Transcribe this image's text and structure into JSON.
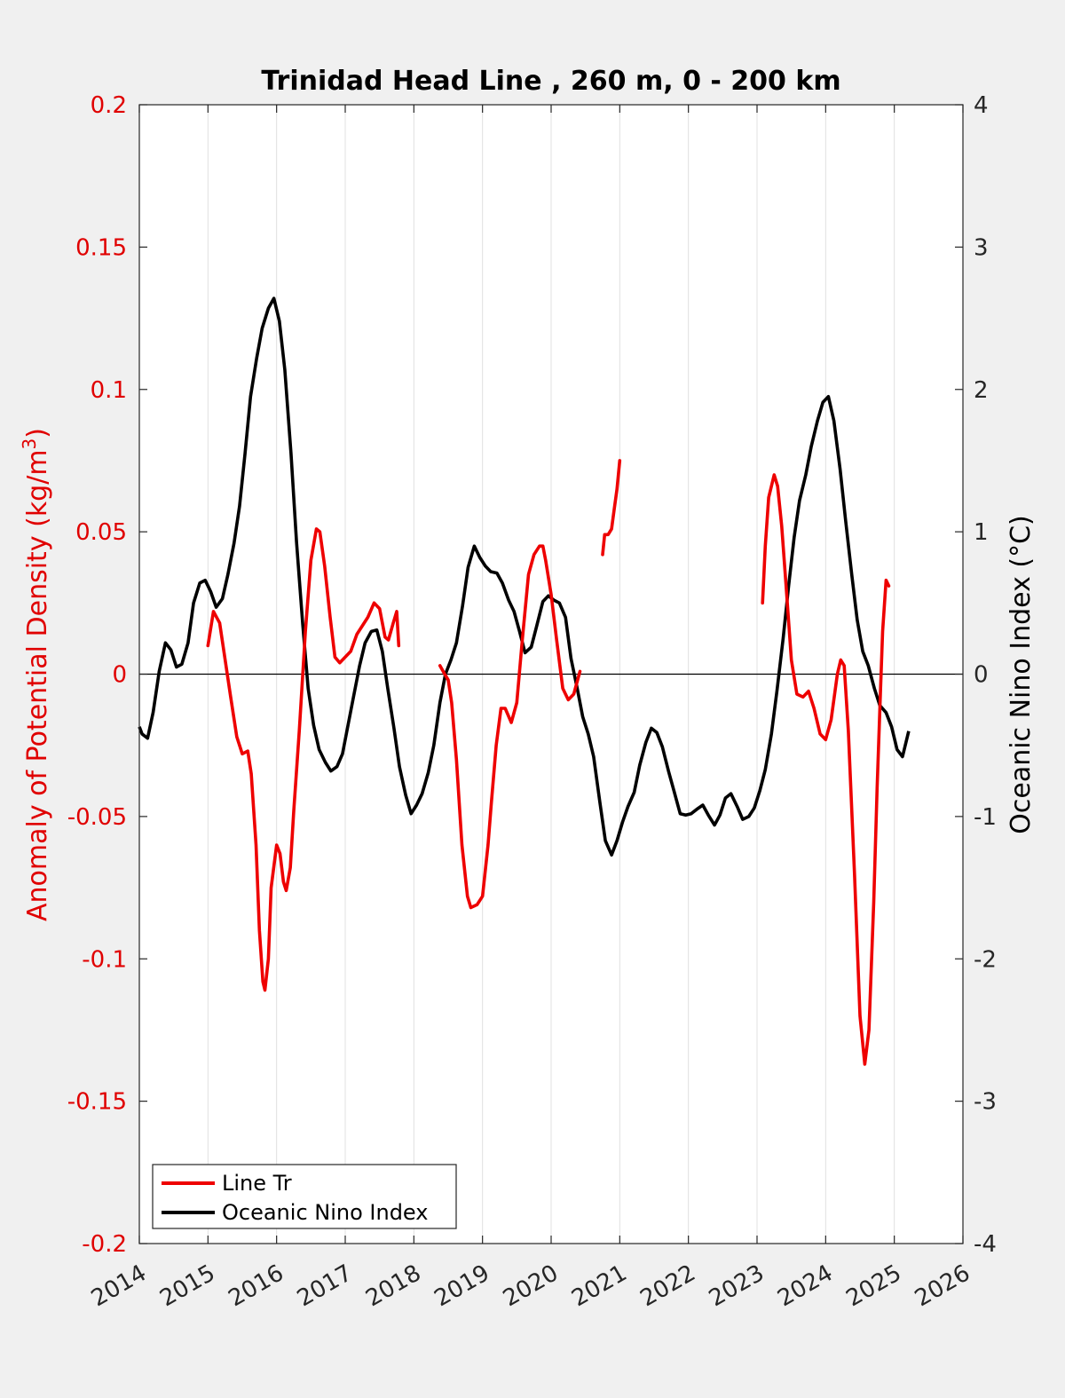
{
  "chart_data": {
    "type": "line",
    "title": "Trinidad Head Line , 260 m, 0 - 200 km",
    "ylabel_left": "Anomaly of Potential Density (kg/m",
    "ylabel_left_sup": "3",
    "ylabel_left_close": ")",
    "ylabel_right": "Oceanic Nino Index (°C)",
    "xlim": [
      2014,
      2026
    ],
    "ylim_left": [
      -0.2,
      0.2
    ],
    "ylim_right": [
      -4,
      4
    ],
    "grid": "vertical",
    "legend_position": "bottom-left",
    "colors": {
      "left_axis": "#e00000",
      "line_tr": "#ee0000",
      "oni": "#000000",
      "background": "#f0f0f0",
      "plot_bg": "#ffffff",
      "grid": "#e0e0e0"
    },
    "x_ticks": [
      "2014",
      "2015",
      "2016",
      "2017",
      "2018",
      "2019",
      "2020",
      "2021",
      "2022",
      "2023",
      "2024",
      "2025",
      "2026"
    ],
    "y_ticks_left": [
      "0.2",
      "0.15",
      "0.1",
      "0.05",
      "0",
      "-0.05",
      "-0.1",
      "-0.15",
      "-0.2"
    ],
    "y_ticks_right": [
      "4",
      "3",
      "2",
      "1",
      "0",
      "-1",
      "-2",
      "-3",
      "-4"
    ],
    "series": [
      {
        "name": "Line Tr",
        "axis": "left",
        "segments": [
          [
            [
              2015.0,
              0.01
            ],
            [
              2015.08,
              0.022
            ],
            [
              2015.17,
              0.018
            ],
            [
              2015.25,
              0.005
            ],
            [
              2015.33,
              -0.008
            ],
            [
              2015.42,
              -0.022
            ],
            [
              2015.5,
              -0.028
            ],
            [
              2015.58,
              -0.027
            ],
            [
              2015.63,
              -0.035
            ],
            [
              2015.7,
              -0.06
            ],
            [
              2015.75,
              -0.09
            ],
            [
              2015.8,
              -0.108
            ],
            [
              2015.83,
              -0.111
            ],
            [
              2015.88,
              -0.1
            ],
            [
              2015.92,
              -0.075
            ],
            [
              2016.0,
              -0.06
            ],
            [
              2016.05,
              -0.063
            ],
            [
              2016.1,
              -0.073
            ],
            [
              2016.14,
              -0.076
            ],
            [
              2016.2,
              -0.068
            ],
            [
              2016.25,
              -0.048
            ],
            [
              2016.33,
              -0.02
            ],
            [
              2016.42,
              0.015
            ],
            [
              2016.5,
              0.04
            ],
            [
              2016.58,
              0.051
            ],
            [
              2016.63,
              0.05
            ],
            [
              2016.7,
              0.038
            ],
            [
              2016.78,
              0.02
            ],
            [
              2016.85,
              0.006
            ],
            [
              2016.92,
              0.004
            ],
            [
              2017.0,
              0.006
            ],
            [
              2017.08,
              0.008
            ],
            [
              2017.17,
              0.014
            ],
            [
              2017.25,
              0.017
            ],
            [
              2017.33,
              0.02
            ],
            [
              2017.42,
              0.025
            ],
            [
              2017.5,
              0.023
            ],
            [
              2017.58,
              0.013
            ],
            [
              2017.63,
              0.012
            ],
            [
              2017.7,
              0.018
            ],
            [
              2017.75,
              0.022
            ],
            [
              2017.78,
              0.01
            ]
          ],
          [
            [
              2018.38,
              0.003
            ],
            [
              2018.45,
              0.0
            ],
            [
              2018.5,
              -0.002
            ],
            [
              2018.55,
              -0.01
            ],
            [
              2018.62,
              -0.03
            ],
            [
              2018.7,
              -0.06
            ],
            [
              2018.78,
              -0.078
            ],
            [
              2018.83,
              -0.082
            ],
            [
              2018.92,
              -0.081
            ],
            [
              2019.0,
              -0.078
            ],
            [
              2019.08,
              -0.06
            ],
            [
              2019.13,
              -0.045
            ],
            [
              2019.2,
              -0.025
            ],
            [
              2019.27,
              -0.012
            ],
            [
              2019.33,
              -0.012
            ],
            [
              2019.42,
              -0.017
            ],
            [
              2019.5,
              -0.01
            ],
            [
              2019.58,
              0.012
            ],
            [
              2019.67,
              0.035
            ],
            [
              2019.75,
              0.042
            ],
            [
              2019.83,
              0.045
            ],
            [
              2019.88,
              0.045
            ],
            [
              2019.92,
              0.04
            ],
            [
              2020.0,
              0.028
            ],
            [
              2020.08,
              0.012
            ],
            [
              2020.17,
              -0.005
            ],
            [
              2020.25,
              -0.009
            ],
            [
              2020.33,
              -0.007
            ],
            [
              2020.42,
              0.001
            ]
          ],
          [
            [
              2020.75,
              0.042
            ],
            [
              2020.78,
              0.049
            ],
            [
              2020.83,
              0.049
            ],
            [
              2020.88,
              0.051
            ],
            [
              2020.92,
              0.058
            ],
            [
              2020.96,
              0.065
            ],
            [
              2021.0,
              0.075
            ]
          ],
          [
            [
              2023.08,
              0.025
            ],
            [
              2023.12,
              0.045
            ],
            [
              2023.17,
              0.062
            ],
            [
              2023.25,
              0.07
            ],
            [
              2023.3,
              0.066
            ],
            [
              2023.36,
              0.052
            ],
            [
              2023.42,
              0.032
            ],
            [
              2023.5,
              0.005
            ],
            [
              2023.58,
              -0.007
            ],
            [
              2023.67,
              -0.008
            ],
            [
              2023.75,
              -0.006
            ],
            [
              2023.83,
              -0.012
            ],
            [
              2023.92,
              -0.021
            ],
            [
              2024.0,
              -0.023
            ],
            [
              2024.08,
              -0.016
            ],
            [
              2024.17,
              0.0
            ],
            [
              2024.22,
              0.005
            ],
            [
              2024.27,
              0.003
            ],
            [
              2024.33,
              -0.02
            ],
            [
              2024.42,
              -0.07
            ],
            [
              2024.5,
              -0.12
            ],
            [
              2024.57,
              -0.137
            ],
            [
              2024.63,
              -0.125
            ],
            [
              2024.7,
              -0.08
            ],
            [
              2024.75,
              -0.04
            ],
            [
              2024.8,
              -0.005
            ],
            [
              2024.83,
              0.015
            ],
            [
              2024.88,
              0.033
            ],
            [
              2024.92,
              0.031
            ]
          ]
        ]
      },
      {
        "name": "Oceanic Nino Index",
        "axis": "right",
        "points": [
          [
            2014.0,
            -0.37
          ],
          [
            2014.04,
            -0.42
          ],
          [
            2014.12,
            -0.45
          ],
          [
            2014.2,
            -0.27
          ],
          [
            2014.29,
            0.02
          ],
          [
            2014.38,
            0.22
          ],
          [
            2014.46,
            0.17
          ],
          [
            2014.54,
            0.05
          ],
          [
            2014.62,
            0.07
          ],
          [
            2014.71,
            0.22
          ],
          [
            2014.79,
            0.5
          ],
          [
            2014.88,
            0.64
          ],
          [
            2014.96,
            0.66
          ],
          [
            2015.04,
            0.58
          ],
          [
            2015.12,
            0.47
          ],
          [
            2015.21,
            0.53
          ],
          [
            2015.29,
            0.7
          ],
          [
            2015.38,
            0.92
          ],
          [
            2015.46,
            1.18
          ],
          [
            2015.54,
            1.55
          ],
          [
            2015.62,
            1.95
          ],
          [
            2015.71,
            2.22
          ],
          [
            2015.79,
            2.43
          ],
          [
            2015.88,
            2.57
          ],
          [
            2015.96,
            2.64
          ],
          [
            2016.04,
            2.48
          ],
          [
            2016.12,
            2.14
          ],
          [
            2016.21,
            1.55
          ],
          [
            2016.29,
            0.93
          ],
          [
            2016.38,
            0.35
          ],
          [
            2016.46,
            -0.1
          ],
          [
            2016.54,
            -0.36
          ],
          [
            2016.62,
            -0.53
          ],
          [
            2016.71,
            -0.62
          ],
          [
            2016.79,
            -0.68
          ],
          [
            2016.88,
            -0.65
          ],
          [
            2016.96,
            -0.56
          ],
          [
            2017.04,
            -0.36
          ],
          [
            2017.12,
            -0.16
          ],
          [
            2017.21,
            0.06
          ],
          [
            2017.29,
            0.22
          ],
          [
            2017.38,
            0.3
          ],
          [
            2017.46,
            0.31
          ],
          [
            2017.54,
            0.16
          ],
          [
            2017.62,
            -0.1
          ],
          [
            2017.71,
            -0.38
          ],
          [
            2017.79,
            -0.65
          ],
          [
            2017.88,
            -0.85
          ],
          [
            2017.96,
            -0.98
          ],
          [
            2018.04,
            -0.92
          ],
          [
            2018.12,
            -0.84
          ],
          [
            2018.21,
            -0.69
          ],
          [
            2018.29,
            -0.5
          ],
          [
            2018.38,
            -0.2
          ],
          [
            2018.46,
            0.0
          ],
          [
            2018.54,
            0.1
          ],
          [
            2018.62,
            0.22
          ],
          [
            2018.71,
            0.48
          ],
          [
            2018.79,
            0.75
          ],
          [
            2018.88,
            0.9
          ],
          [
            2018.96,
            0.82
          ],
          [
            2019.04,
            0.76
          ],
          [
            2019.12,
            0.72
          ],
          [
            2019.21,
            0.71
          ],
          [
            2019.29,
            0.64
          ],
          [
            2019.38,
            0.52
          ],
          [
            2019.46,
            0.44
          ],
          [
            2019.54,
            0.3
          ],
          [
            2019.62,
            0.15
          ],
          [
            2019.71,
            0.19
          ],
          [
            2019.79,
            0.34
          ],
          [
            2019.88,
            0.51
          ],
          [
            2019.96,
            0.55
          ],
          [
            2020.04,
            0.52
          ],
          [
            2020.12,
            0.5
          ],
          [
            2020.21,
            0.4
          ],
          [
            2020.29,
            0.11
          ],
          [
            2020.38,
            -0.1
          ],
          [
            2020.46,
            -0.3
          ],
          [
            2020.54,
            -0.42
          ],
          [
            2020.62,
            -0.58
          ],
          [
            2020.71,
            -0.9
          ],
          [
            2020.79,
            -1.17
          ],
          [
            2020.88,
            -1.27
          ],
          [
            2020.96,
            -1.17
          ],
          [
            2021.04,
            -1.04
          ],
          [
            2021.12,
            -0.93
          ],
          [
            2021.21,
            -0.83
          ],
          [
            2021.29,
            -0.64
          ],
          [
            2021.38,
            -0.48
          ],
          [
            2021.46,
            -0.38
          ],
          [
            2021.54,
            -0.41
          ],
          [
            2021.62,
            -0.51
          ],
          [
            2021.71,
            -0.68
          ],
          [
            2021.79,
            -0.82
          ],
          [
            2021.88,
            -0.98
          ],
          [
            2021.96,
            -0.99
          ],
          [
            2022.04,
            -0.98
          ],
          [
            2022.12,
            -0.95
          ],
          [
            2022.21,
            -0.92
          ],
          [
            2022.29,
            -0.99
          ],
          [
            2022.38,
            -1.06
          ],
          [
            2022.46,
            -0.99
          ],
          [
            2022.54,
            -0.87
          ],
          [
            2022.62,
            -0.84
          ],
          [
            2022.71,
            -0.93
          ],
          [
            2022.79,
            -1.02
          ],
          [
            2022.88,
            -1.0
          ],
          [
            2022.96,
            -0.94
          ],
          [
            2023.04,
            -0.82
          ],
          [
            2023.12,
            -0.67
          ],
          [
            2023.21,
            -0.42
          ],
          [
            2023.29,
            -0.12
          ],
          [
            2023.38,
            0.25
          ],
          [
            2023.46,
            0.62
          ],
          [
            2023.54,
            0.96
          ],
          [
            2023.62,
            1.22
          ],
          [
            2023.71,
            1.4
          ],
          [
            2023.79,
            1.6
          ],
          [
            2023.88,
            1.78
          ],
          [
            2023.96,
            1.91
          ],
          [
            2024.04,
            1.95
          ],
          [
            2024.12,
            1.78
          ],
          [
            2024.21,
            1.44
          ],
          [
            2024.29,
            1.08
          ],
          [
            2024.38,
            0.7
          ],
          [
            2024.46,
            0.38
          ],
          [
            2024.54,
            0.16
          ],
          [
            2024.62,
            0.06
          ],
          [
            2024.71,
            -0.1
          ],
          [
            2024.79,
            -0.22
          ],
          [
            2024.88,
            -0.27
          ],
          [
            2024.96,
            -0.37
          ],
          [
            2025.04,
            -0.53
          ],
          [
            2025.12,
            -0.58
          ],
          [
            2025.21,
            -0.4
          ]
        ]
      }
    ]
  }
}
